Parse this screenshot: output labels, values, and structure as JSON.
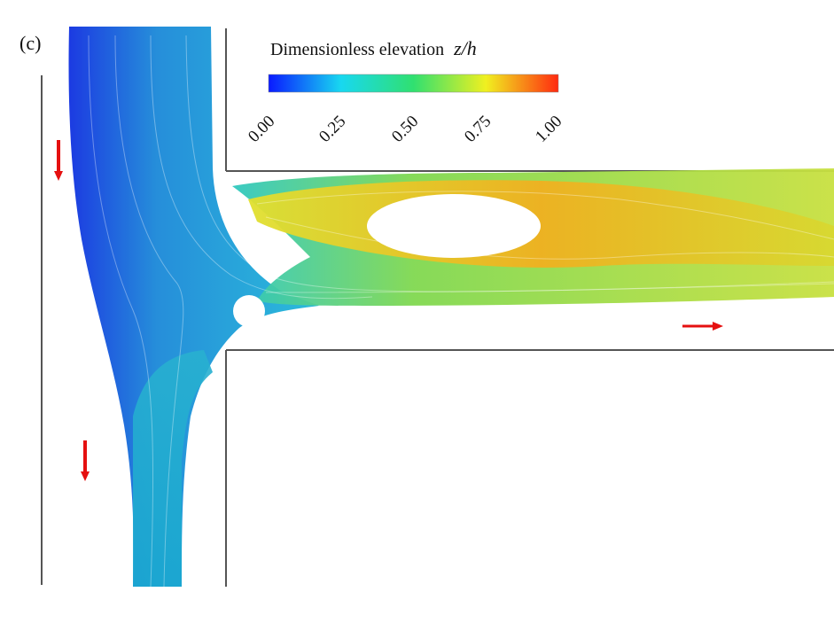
{
  "panel_label": "(c)",
  "colorbar": {
    "title": "Dimensionless elevation",
    "variable": "z/h",
    "ticks": [
      "0.00",
      "0.25",
      "0.50",
      "0.75",
      "1.00"
    ],
    "colors": [
      "#0a1aff",
      "#18d8f0",
      "#30e070",
      "#f0f020",
      "#ff2a10"
    ]
  },
  "flow_arrow_color": "#e51010",
  "obstacle_color": "#ffffff"
}
